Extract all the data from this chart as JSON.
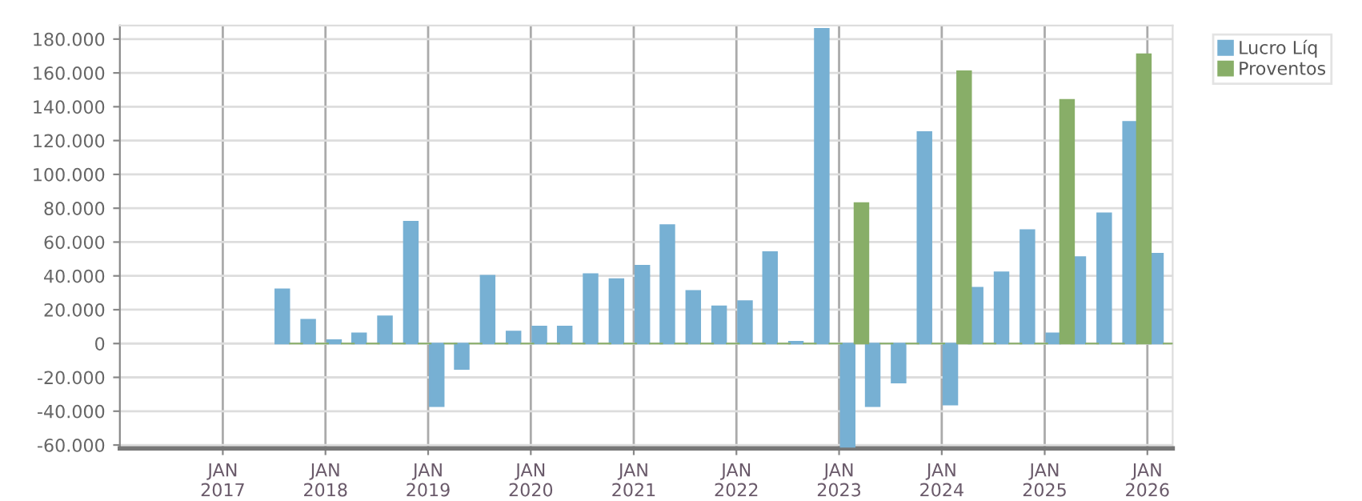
{
  "chart_data": {
    "type": "bar",
    "legend": "top right",
    "grid": true,
    "x": [
      "2017-08-25",
      "2017-11-25",
      "2018-02-25",
      "2018-05-25",
      "2018-08-25",
      "2018-11-25",
      "2019-02-25",
      "2019-05-25",
      "2019-08-25",
      "2019-11-25",
      "2020-02-25",
      "2020-05-25",
      "2020-08-25",
      "2020-11-25",
      "2021-02-25",
      "2021-05-25",
      "2021-08-25",
      "2021-11-25",
      "2022-02-25",
      "2022-05-25",
      "2022-08-25",
      "2022-11-25",
      "2023-02-25",
      "2023-05-25",
      "2023-08-25",
      "2023-11-25",
      "2024-02-25",
      "2024-05-25",
      "2024-08-25",
      "2024-11-25",
      "2025-02-25",
      "2025-05-25",
      "2025-08-25",
      "2025-11-25",
      "2026-02-25"
    ],
    "series": [
      {
        "name": "Lucro Líq",
        "color": "#77b0d3",
        "values": [
          32000,
          14000,
          2000,
          6000,
          16000,
          72000,
          -37000,
          -15000,
          40000,
          7000,
          10000,
          10000,
          41000,
          38000,
          46000,
          70000,
          31000,
          22000,
          25000,
          54000,
          1000,
          186000,
          -61000,
          -37000,
          -23000,
          125000,
          -36000,
          33000,
          42000,
          67000,
          6000,
          51000,
          77000,
          131000,
          53000
        ]
      },
      {
        "name": "Proventos",
        "color": "#88ae68",
        "values": [
          0,
          0,
          0,
          0,
          0,
          0,
          0,
          0,
          0,
          0,
          0,
          0,
          0,
          0,
          0,
          0,
          0,
          0,
          0,
          0,
          0,
          0,
          83000,
          0,
          0,
          0,
          161000,
          0,
          0,
          0,
          144000,
          0,
          0,
          171000,
          0
        ]
      }
    ],
    "xlim": [
      "2016-01-01",
      "2026-04-01"
    ],
    "xticks": [
      {
        "value": "2017-01-01",
        "label": "JAN\n2017"
      },
      {
        "value": "2018-01-01",
        "label": "JAN\n2018"
      },
      {
        "value": "2019-01-01",
        "label": "JAN\n2019"
      },
      {
        "value": "2020-01-01",
        "label": "JAN\n2020"
      },
      {
        "value": "2021-01-01",
        "label": "JAN\n2021"
      },
      {
        "value": "2022-01-01",
        "label": "JAN\n2022"
      },
      {
        "value": "2023-01-01",
        "label": "JAN\n2023"
      },
      {
        "value": "2024-01-01",
        "label": "JAN\n2024"
      },
      {
        "value": "2025-01-01",
        "label": "JAN\n2025"
      },
      {
        "value": "2026-01-01",
        "label": "JAN\n2026"
      }
    ],
    "ylim": [
      -62000,
      188000
    ],
    "yticks": [
      {
        "value": -60000,
        "label": "-60.000"
      },
      {
        "value": -40000,
        "label": "-40.000"
      },
      {
        "value": -20000,
        "label": "-20.000"
      },
      0,
      {
        "value": 20000,
        "label": "20.000"
      },
      {
        "value": 40000,
        "label": "40.000"
      },
      {
        "value": 60000,
        "label": "60.000"
      },
      {
        "value": 80000,
        "label": "80.000"
      },
      {
        "value": 100000,
        "label": "100.000"
      },
      {
        "value": 120000,
        "label": "120.000"
      },
      {
        "value": 140000,
        "label": "140.000"
      },
      {
        "value": 160000,
        "label": "160.000"
      },
      {
        "value": 180000,
        "label": "180.000"
      }
    ]
  }
}
